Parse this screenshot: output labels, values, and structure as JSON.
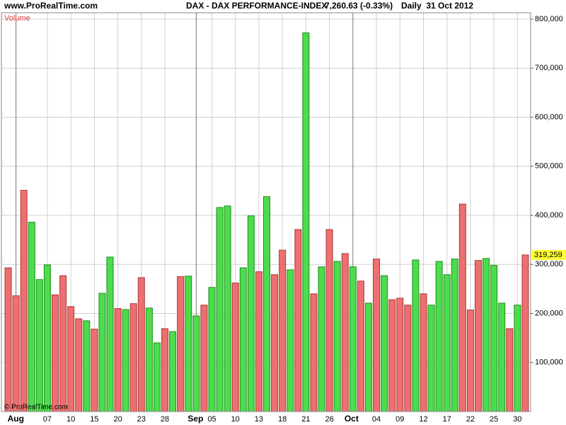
{
  "header": {
    "site": "www.ProRealTime.com",
    "instrument": "DAX - DAX PERFORMANCE-INDEX",
    "quote": "7,260.63 (-0.33%)",
    "period": "Daily  31 Oct 2012"
  },
  "chart_data": {
    "type": "bar",
    "title": "Volume",
    "watermark": "© ProRealTime.com",
    "categories": [
      null,
      "Aug",
      null,
      null,
      null,
      "07",
      null,
      null,
      "10",
      null,
      null,
      "15",
      null,
      null,
      "20",
      null,
      null,
      "23",
      null,
      null,
      "28",
      null,
      null,
      null,
      "Sep",
      null,
      "05",
      null,
      null,
      "10",
      null,
      null,
      "13",
      null,
      null,
      "18",
      null,
      null,
      "21",
      null,
      null,
      "26",
      null,
      null,
      "Oct",
      null,
      null,
      "04",
      null,
      null,
      "09",
      null,
      null,
      "12",
      null,
      null,
      "17",
      null,
      null,
      "22",
      null,
      null,
      "25",
      null,
      null,
      "30",
      null
    ],
    "values": [
      293000,
      236000,
      451000,
      386000,
      269000,
      299000,
      238000,
      277000,
      214000,
      189000,
      185000,
      168000,
      241000,
      315000,
      210000,
      208000,
      220000,
      273000,
      211000,
      140000,
      169000,
      163000,
      275000,
      276000,
      195000,
      217000,
      253000,
      416000,
      419000,
      262000,
      293000,
      399000,
      285000,
      438000,
      279000,
      329000,
      289000,
      371000,
      772000,
      240000,
      295000,
      371000,
      306000,
      322000,
      295000,
      266000,
      221000,
      311000,
      277000,
      228000,
      231000,
      217000,
      309000,
      240000,
      217000,
      306000,
      279000,
      311000,
      423000,
      207000,
      308000,
      312000,
      298000,
      221000,
      169000,
      217000,
      319259
    ],
    "value_labels": [
      null,
      null,
      null,
      null,
      null,
      null,
      null,
      null,
      null,
      null,
      null,
      null,
      null,
      null,
      null,
      null,
      null,
      null,
      null,
      null,
      null,
      null,
      null,
      null,
      null,
      null,
      null,
      null,
      null,
      null,
      null,
      null,
      null,
      null,
      null,
      null,
      null,
      null,
      null,
      null,
      null,
      null,
      null,
      null,
      null,
      null,
      null,
      null,
      null,
      null,
      null,
      null,
      null,
      null,
      null,
      null,
      null,
      null,
      null,
      null,
      null,
      null,
      null,
      null,
      null,
      null,
      "319,259"
    ],
    "colors": [
      "#ee6f6f",
      "#ee6f6f",
      "#ee6f6f",
      "#4cdc4c",
      "#4cdc4c",
      "#4cdc4c",
      "#ee6f6f",
      "#ee6f6f",
      "#ee6f6f",
      "#ee6f6f",
      "#4cdc4c",
      "#ee6f6f",
      "#4cdc4c",
      "#4cdc4c",
      "#ee6f6f",
      "#4cdc4c",
      "#ee6f6f",
      "#ee6f6f",
      "#4cdc4c",
      "#4cdc4c",
      "#ee6f6f",
      "#4cdc4c",
      "#ee6f6f",
      "#4cdc4c",
      "#4cdc4c",
      "#ee6f6f",
      "#4cdc4c",
      "#4cdc4c",
      "#4cdc4c",
      "#ee6f6f",
      "#4cdc4c",
      "#4cdc4c",
      "#ee6f6f",
      "#4cdc4c",
      "#ee6f6f",
      "#ee6f6f",
      "#4cdc4c",
      "#ee6f6f",
      "#4cdc4c",
      "#ee6f6f",
      "#4cdc4c",
      "#ee6f6f",
      "#4cdc4c",
      "#ee6f6f",
      "#4cdc4c",
      "#ee6f6f",
      "#4cdc4c",
      "#ee6f6f",
      "#4cdc4c",
      "#ee6f6f",
      "#ee6f6f",
      "#ee6f6f",
      "#4cdc4c",
      "#ee6f6f",
      "#4cdc4c",
      "#4cdc4c",
      "#4cdc4c",
      "#4cdc4c",
      "#ee6f6f",
      "#ee6f6f",
      "#ee6f6f",
      "#4cdc4c",
      "#4cdc4c",
      "#4cdc4c",
      "#ee6f6f",
      "#4cdc4c",
      "#ee6f6f"
    ],
    "ylim": [
      0,
      813000
    ],
    "yticks": [
      {
        "value": 100000,
        "label": "100,000"
      },
      {
        "value": 200000,
        "label": "200,000"
      },
      {
        "value": 300000,
        "label": "300,000"
      },
      {
        "value": 400000,
        "label": "400,000"
      },
      {
        "value": 500000,
        "label": "500,000"
      },
      {
        "value": 600000,
        "label": "600,000"
      },
      {
        "value": 700000,
        "label": "700,000"
      },
      {
        "value": 800000,
        "label": "800,000"
      }
    ],
    "grid": true
  }
}
